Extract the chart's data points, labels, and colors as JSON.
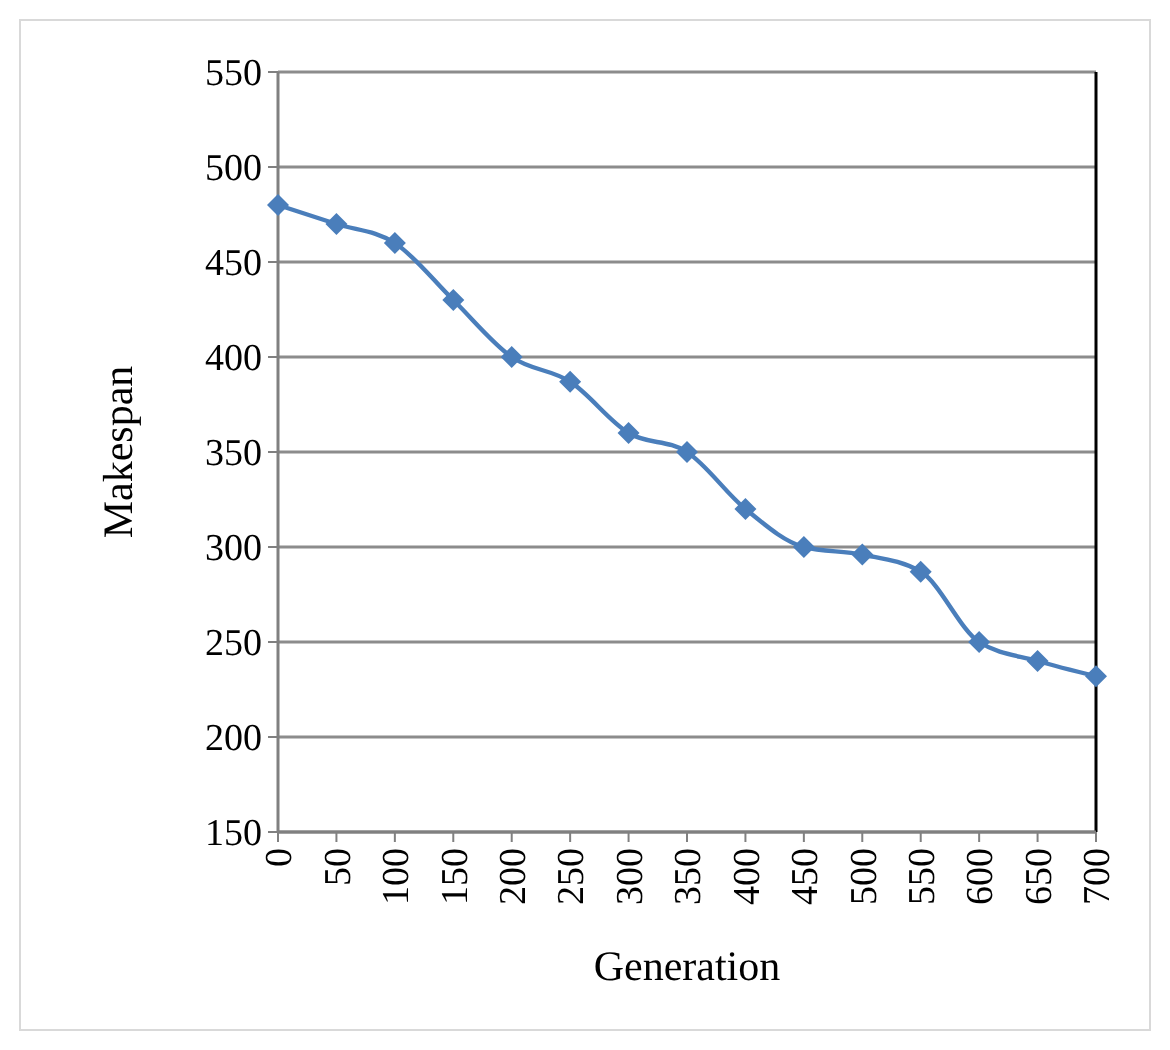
{
  "chart_data": {
    "type": "line",
    "xlabel": "Generation",
    "ylabel": "Makespan",
    "x": [
      0,
      50,
      100,
      150,
      200,
      250,
      300,
      350,
      400,
      450,
      500,
      550,
      600,
      650,
      700
    ],
    "series": [
      {
        "color": "#4a7ebb",
        "values": [
          480,
          470,
          460,
          430,
          400,
          387,
          360,
          350,
          320,
          300,
          296,
          287,
          250,
          240,
          232
        ]
      }
    ],
    "xlim": [
      0,
      700
    ],
    "xticks": [
      0,
      50,
      100,
      150,
      200,
      250,
      300,
      350,
      400,
      450,
      500,
      550,
      600,
      650,
      700
    ],
    "ylim": [
      150,
      550
    ],
    "yticks": [
      150,
      200,
      250,
      300,
      350,
      400,
      450,
      500,
      550
    ],
    "grid": "y",
    "marker": "diamond",
    "line_style": "solid"
  }
}
